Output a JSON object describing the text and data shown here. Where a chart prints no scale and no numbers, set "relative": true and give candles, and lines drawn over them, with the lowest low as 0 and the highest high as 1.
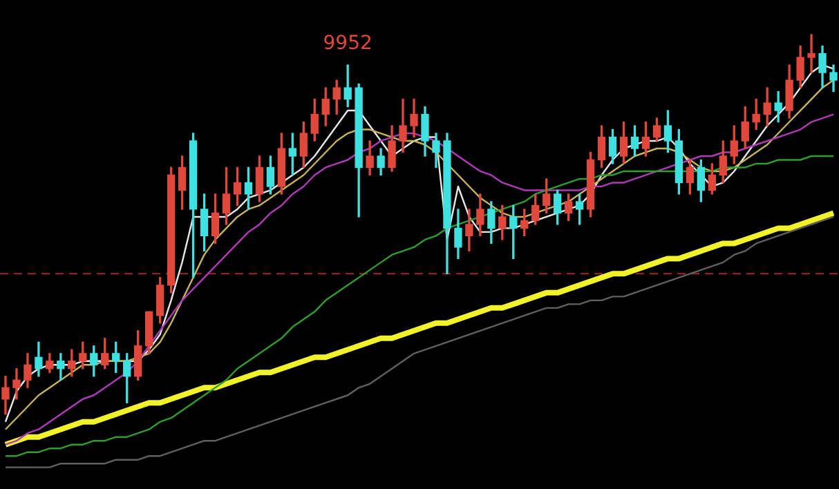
{
  "chart_data": {
    "type": "candlestick",
    "relative": true,
    "legend": false,
    "categories": [
      null,
      null,
      null,
      null,
      null,
      null,
      null,
      null,
      null,
      null,
      null,
      null,
      null,
      null,
      null,
      null,
      null,
      null,
      null,
      null,
      null,
      null,
      null,
      null,
      null,
      null,
      null,
      null,
      null,
      null,
      null,
      null,
      null,
      null,
      null,
      null,
      null,
      null,
      null,
      null,
      null,
      null,
      null,
      null,
      null,
      null,
      null,
      null,
      null,
      null,
      null,
      null,
      null,
      null,
      null,
      null,
      null,
      null,
      null,
      null,
      null,
      null,
      null,
      null,
      null,
      null,
      null,
      null,
      null,
      null,
      null,
      null,
      null,
      null,
      null,
      null
    ],
    "ohlc": [
      [
        0.04,
        0.1,
        0,
        0.07
      ],
      [
        0.07,
        0.12,
        0.04,
        0.09
      ],
      [
        0.09,
        0.16,
        0.07,
        0.13
      ],
      [
        0.15,
        0.19,
        0.1,
        0.12
      ],
      [
        0.12,
        0.16,
        0.11,
        0.14
      ],
      [
        0.14,
        0.16,
        0.09,
        0.12
      ],
      [
        0.12,
        0.17,
        0.1,
        0.14
      ],
      [
        0.14,
        0.19,
        0.12,
        0.16
      ],
      [
        0.16,
        0.18,
        0.1,
        0.13
      ],
      [
        0.13,
        0.2,
        0.12,
        0.16
      ],
      [
        0.16,
        0.19,
        0.11,
        0.14
      ],
      [
        0.14,
        0.16,
        0.03,
        0.1
      ],
      [
        0.1,
        0.22,
        0.09,
        0.18
      ],
      [
        0.18,
        0.27,
        0.16,
        0.27
      ],
      [
        0.26,
        0.36,
        0.24,
        0.34
      ],
      [
        0.34,
        0.65,
        0.32,
        0.63
      ],
      [
        0.59,
        0.68,
        0.54,
        0.65
      ],
      [
        0.72,
        0.74,
        0.36,
        0.54
      ],
      [
        0.54,
        0.58,
        0.43,
        0.47
      ],
      [
        0.47,
        0.58,
        0.45,
        0.53
      ],
      [
        0.53,
        0.65,
        0.5,
        0.58
      ],
      [
        0.58,
        0.65,
        0.55,
        0.61
      ],
      [
        0.61,
        0.65,
        0.54,
        0.58
      ],
      [
        0.58,
        0.68,
        0.56,
        0.65
      ],
      [
        0.65,
        0.68,
        0.58,
        0.6
      ],
      [
        0.6,
        0.74,
        0.58,
        0.7
      ],
      [
        0.7,
        0.74,
        0.63,
        0.68
      ],
      [
        0.68,
        0.77,
        0.65,
        0.74
      ],
      [
        0.74,
        0.83,
        0.72,
        0.79
      ],
      [
        0.79,
        0.86,
        0.76,
        0.83
      ],
      [
        0.83,
        0.88,
        0.79,
        0.86
      ],
      [
        0.86,
        0.92,
        0.81,
        0.83
      ],
      [
        0.86,
        0.87,
        0.52,
        0.65
      ],
      [
        0.65,
        0.72,
        0.63,
        0.68
      ],
      [
        0.68,
        0.7,
        0.63,
        0.65
      ],
      [
        0.65,
        0.76,
        0.64,
        0.72
      ],
      [
        0.72,
        0.83,
        0.69,
        0.76
      ],
      [
        0.76,
        0.83,
        0.73,
        0.79
      ],
      [
        0.79,
        0.81,
        0.68,
        0.72
      ],
      [
        0.72,
        0.74,
        0.65,
        0.69
      ],
      [
        0.72,
        0.74,
        0.37,
        0.49
      ],
      [
        0.49,
        0.54,
        0.41,
        0.44
      ],
      [
        0.47,
        0.54,
        0.43,
        0.5
      ],
      [
        0.5,
        0.58,
        0.47,
        0.54
      ],
      [
        0.54,
        0.56,
        0.45,
        0.49
      ],
      [
        0.49,
        0.55,
        0.46,
        0.52
      ],
      [
        0.52,
        0.55,
        0.41,
        0.49
      ],
      [
        0.49,
        0.54,
        0.47,
        0.51
      ],
      [
        0.51,
        0.58,
        0.5,
        0.55
      ],
      [
        0.55,
        0.62,
        0.53,
        0.58
      ],
      [
        0.58,
        0.59,
        0.5,
        0.53
      ],
      [
        0.53,
        0.58,
        0.51,
        0.56
      ],
      [
        0.56,
        0.58,
        0.5,
        0.54
      ],
      [
        0.54,
        0.69,
        0.52,
        0.67
      ],
      [
        0.67,
        0.76,
        0.65,
        0.73
      ],
      [
        0.73,
        0.75,
        0.66,
        0.68
      ],
      [
        0.68,
        0.77,
        0.66,
        0.73
      ],
      [
        0.73,
        0.76,
        0.68,
        0.7
      ],
      [
        0.7,
        0.77,
        0.68,
        0.73
      ],
      [
        0.73,
        0.78,
        0.72,
        0.76
      ],
      [
        0.76,
        0.8,
        0.69,
        0.72
      ],
      [
        0.72,
        0.75,
        0.58,
        0.61
      ],
      [
        0.61,
        0.67,
        0.58,
        0.65
      ],
      [
        0.65,
        0.67,
        0.56,
        0.59
      ],
      [
        0.59,
        0.66,
        0.58,
        0.63
      ],
      [
        0.63,
        0.72,
        0.61,
        0.68
      ],
      [
        0.68,
        0.76,
        0.66,
        0.72
      ],
      [
        0.72,
        0.81,
        0.7,
        0.77
      ],
      [
        0.77,
        0.83,
        0.75,
        0.79
      ],
      [
        0.79,
        0.86,
        0.76,
        0.82
      ],
      [
        0.82,
        0.85,
        0.77,
        0.8
      ],
      [
        0.8,
        0.92,
        0.78,
        0.88
      ],
      [
        0.88,
        0.97,
        0.86,
        0.94
      ],
      [
        0.94,
        1,
        0.9,
        0.95
      ],
      [
        0.95,
        0.97,
        0.86,
        0.9
      ],
      [
        0.9,
        0.92,
        0.85,
        0.88
      ]
    ],
    "colors": [
      "#e0483c",
      "#e0483c",
      "#e0483c",
      "#3ee0e0",
      "#e0483c",
      "#3ee0e0",
      "#e0483c",
      "#e0483c",
      "#3ee0e0",
      "#e0483c",
      "#3ee0e0",
      "#3ee0e0",
      "#e0483c",
      "#e0483c",
      "#e0483c",
      "#e0483c",
      "#e0483c",
      "#3ee0e0",
      "#3ee0e0",
      "#e0483c",
      "#e0483c",
      "#e0483c",
      "#3ee0e0",
      "#e0483c",
      "#3ee0e0",
      "#e0483c",
      "#3ee0e0",
      "#e0483c",
      "#e0483c",
      "#e0483c",
      "#e0483c",
      "#3ee0e0",
      "#3ee0e0",
      "#e0483c",
      "#3ee0e0",
      "#e0483c",
      "#e0483c",
      "#e0483c",
      "#3ee0e0",
      "#3ee0e0",
      "#3ee0e0",
      "#3ee0e0",
      "#e0483c",
      "#e0483c",
      "#3ee0e0",
      "#e0483c",
      "#3ee0e0",
      "#e0483c",
      "#e0483c",
      "#e0483c",
      "#3ee0e0",
      "#e0483c",
      "#3ee0e0",
      "#e0483c",
      "#e0483c",
      "#3ee0e0",
      "#e0483c",
      "#3ee0e0",
      "#e0483c",
      "#e0483c",
      "#3ee0e0",
      "#3ee0e0",
      "#e0483c",
      "#3ee0e0",
      "#e0483c",
      "#e0483c",
      "#e0483c",
      "#e0483c",
      "#e0483c",
      "#e0483c",
      "#3ee0e0",
      "#e0483c",
      "#e0483c",
      "#e0483c",
      "#3ee0e0",
      "#3ee0e0"
    ],
    "series": [
      {
        "type": "line",
        "color": "#606060",
        "values": [
          -0.14,
          -0.14,
          -0.14,
          -0.14,
          -0.14,
          -0.13,
          -0.13,
          -0.13,
          -0.13,
          -0.13,
          -0.12,
          -0.12,
          -0.12,
          -0.11,
          -0.11,
          -0.1,
          -0.09,
          -0.08,
          -0.07,
          -0.07,
          -0.06,
          -0.05,
          -0.04,
          -0.03,
          -0.02,
          -0.01,
          0,
          0.01,
          0.02,
          0.03,
          0.04,
          0.05,
          0.07,
          0.08,
          0.1,
          0.12,
          0.14,
          0.16,
          0.17,
          0.18,
          0.19,
          0.2,
          0.21,
          0.22,
          0.23,
          0.24,
          0.25,
          0.26,
          0.27,
          0.28,
          0.28,
          0.29,
          0.29,
          0.3,
          0.3,
          0.31,
          0.31,
          0.32,
          0.33,
          0.34,
          0.35,
          0.36,
          0.37,
          0.38,
          0.39,
          0.4,
          0.42,
          0.43,
          0.45,
          0.46,
          0.47,
          0.48,
          0.49,
          0.5,
          0.51,
          0.52
        ]
      },
      {
        "type": "line",
        "color": "#2e9e2e",
        "values": [
          -0.11,
          -0.11,
          -0.1,
          -0.1,
          -0.09,
          -0.09,
          -0.08,
          -0.08,
          -0.07,
          -0.07,
          -0.06,
          -0.06,
          -0.05,
          -0.04,
          -0.02,
          -0.01,
          0.01,
          0.03,
          0.05,
          0.07,
          0.09,
          0.12,
          0.14,
          0.16,
          0.18,
          0.2,
          0.23,
          0.25,
          0.27,
          0.3,
          0.32,
          0.34,
          0.36,
          0.38,
          0.4,
          0.42,
          0.43,
          0.44,
          0.46,
          0.47,
          0.49,
          0.5,
          0.51,
          0.52,
          0.53,
          0.54,
          0.55,
          0.56,
          0.58,
          0.59,
          0.6,
          0.61,
          0.62,
          0.62,
          0.63,
          0.63,
          0.64,
          0.64,
          0.64,
          0.64,
          0.64,
          0.64,
          0.64,
          0.64,
          0.64,
          0.65,
          0.65,
          0.65,
          0.66,
          0.66,
          0.67,
          0.67,
          0.67,
          0.68,
          0.68,
          0.68
        ]
      },
      {
        "type": "line",
        "color": "#b03ab8",
        "values": [
          -0.08,
          -0.07,
          -0.05,
          -0.04,
          -0.02,
          0,
          0.02,
          0.04,
          0.05,
          0.07,
          0.09,
          0.11,
          0.14,
          0.18,
          0.22,
          0.26,
          0.3,
          0.33,
          0.36,
          0.39,
          0.42,
          0.45,
          0.48,
          0.5,
          0.53,
          0.55,
          0.58,
          0.6,
          0.63,
          0.65,
          0.66,
          0.67,
          0.69,
          0.7,
          0.72,
          0.73,
          0.74,
          0.74,
          0.73,
          0.72,
          0.7,
          0.68,
          0.66,
          0.64,
          0.63,
          0.61,
          0.6,
          0.59,
          0.59,
          0.59,
          0.59,
          0.59,
          0.59,
          0.6,
          0.6,
          0.61,
          0.61,
          0.62,
          0.63,
          0.64,
          0.65,
          0.66,
          0.67,
          0.68,
          0.68,
          0.69,
          0.69,
          0.7,
          0.71,
          0.72,
          0.73,
          0.74,
          0.75,
          0.77,
          0.78,
          0.79
        ]
      },
      {
        "type": "line",
        "color": "#c8b45a",
        "values": [
          -0.04,
          -0.01,
          0.02,
          0.05,
          0.07,
          0.09,
          0.11,
          0.13,
          0.13,
          0.14,
          0.14,
          0.14,
          0.15,
          0.16,
          0.19,
          0.24,
          0.3,
          0.36,
          0.42,
          0.46,
          0.49,
          0.52,
          0.54,
          0.55,
          0.57,
          0.59,
          0.61,
          0.63,
          0.66,
          0.69,
          0.72,
          0.74,
          0.75,
          0.75,
          0.74,
          0.73,
          0.72,
          0.72,
          0.71,
          0.69,
          0.66,
          0.63,
          0.6,
          0.57,
          0.55,
          0.53,
          0.52,
          0.52,
          0.53,
          0.54,
          0.55,
          0.56,
          0.58,
          0.6,
          0.62,
          0.64,
          0.66,
          0.68,
          0.69,
          0.7,
          0.7,
          0.69,
          0.67,
          0.65,
          0.64,
          0.64,
          0.65,
          0.67,
          0.69,
          0.71,
          0.74,
          0.77,
          0.8,
          0.83,
          0.86,
          0.88
        ]
      },
      {
        "type": "line",
        "color": "#e8e8e8",
        "values": [
          -0.02,
          0.06,
          0.1,
          0.12,
          0.13,
          0.13,
          0.13,
          0.14,
          0.14,
          0.14,
          0.14,
          0.14,
          0.14,
          0.17,
          0.21,
          0.3,
          0.4,
          0.52,
          0.52,
          0.52,
          0.52,
          0.54,
          0.57,
          0.58,
          0.59,
          0.61,
          0.63,
          0.65,
          0.68,
          0.72,
          0.76,
          0.8,
          0.8,
          0.76,
          0.72,
          0.68,
          0.7,
          0.72,
          0.73,
          0.73,
          0.46,
          0.6,
          0.52,
          0.48,
          0.48,
          0.49,
          0.49,
          0.5,
          0.51,
          0.52,
          0.53,
          0.54,
          0.55,
          0.58,
          0.63,
          0.67,
          0.7,
          0.71,
          0.72,
          0.72,
          0.73,
          0.7,
          0.66,
          0.63,
          0.6,
          0.61,
          0.64,
          0.68,
          0.72,
          0.76,
          0.79,
          0.82,
          0.86,
          0.9,
          0.92,
          0.91
        ]
      },
      {
        "type": "line",
        "color": "#f2f22a",
        "values": [
          -0.08,
          -0.07,
          -0.06,
          -0.06,
          -0.05,
          -0.04,
          -0.03,
          -0.02,
          -0.02,
          -0.01,
          0,
          0.01,
          0.02,
          0.03,
          0.03,
          0.04,
          0.05,
          0.06,
          0.07,
          0.07,
          0.08,
          0.09,
          0.1,
          0.11,
          0.11,
          0.12,
          0.13,
          0.14,
          0.15,
          0.15,
          0.16,
          0.17,
          0.18,
          0.19,
          0.2,
          0.2,
          0.21,
          0.22,
          0.23,
          0.24,
          0.24,
          0.25,
          0.26,
          0.27,
          0.28,
          0.28,
          0.29,
          0.3,
          0.31,
          0.32,
          0.32,
          0.33,
          0.34,
          0.35,
          0.36,
          0.37,
          0.37,
          0.38,
          0.39,
          0.4,
          0.41,
          0.41,
          0.42,
          0.43,
          0.44,
          0.45,
          0.45,
          0.46,
          0.47,
          0.48,
          0.49,
          0.49,
          0.5,
          0.51,
          0.52,
          0.53
        ]
      }
    ],
    "ref_lines": [
      {
        "axis": "y",
        "value": 0.37,
        "color": "#a02828",
        "line_style": "dashed"
      }
    ],
    "annotations": [
      {
        "text": "9952",
        "y": 0.92
      }
    ]
  }
}
